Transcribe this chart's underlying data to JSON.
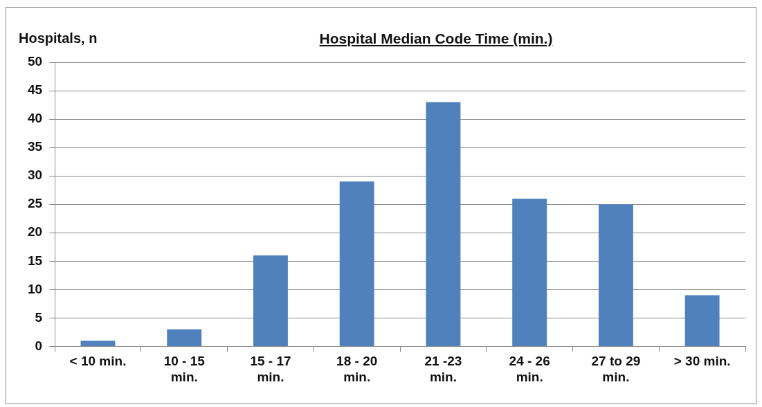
{
  "chart_data": {
    "type": "bar",
    "title": "Hospital Median Code Time (min.)",
    "ylabel": "Hospitals, n",
    "categories": [
      "< 10 min.",
      "10 - 15 min.",
      "15 - 17 min.",
      "18 - 20 min.",
      "21 -23 min.",
      "24 - 26 min.",
      "27 to 29 min.",
      "> 30 min."
    ],
    "values": [
      1,
      3,
      16,
      29,
      43,
      26,
      25,
      9
    ],
    "color": "#4f81bd",
    "ylim": [
      0,
      50
    ],
    "yticks": [
      0,
      5,
      10,
      15,
      20,
      25,
      30,
      35,
      40,
      45,
      50
    ],
    "grid": "y"
  }
}
